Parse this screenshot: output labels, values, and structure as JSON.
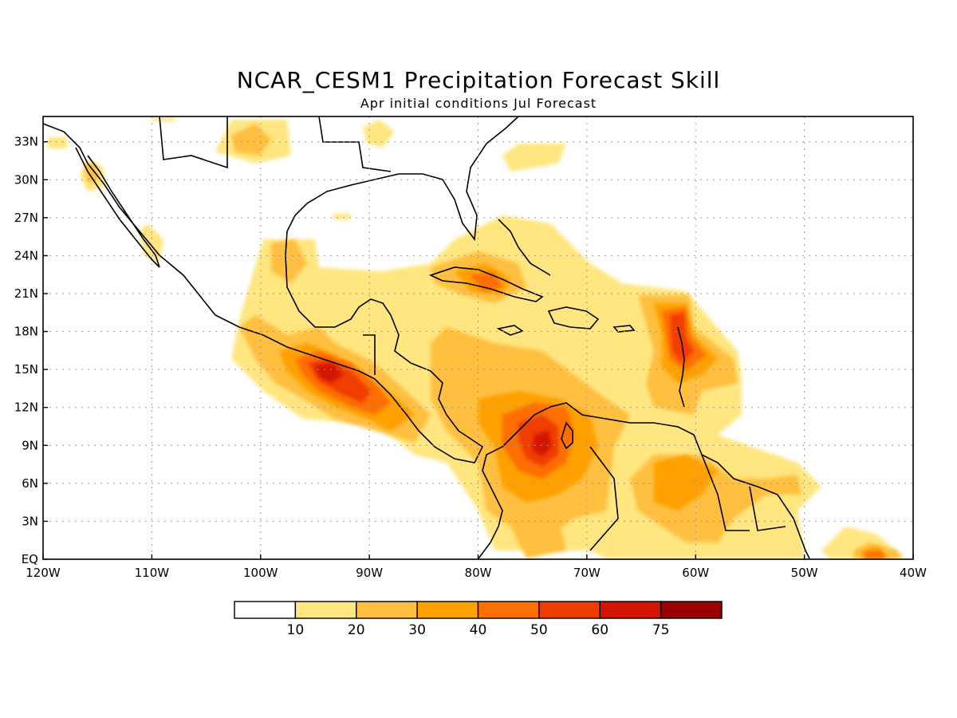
{
  "title": "NCAR_CESM1 Precipitation Forecast Skill",
  "subtitle": "Apr initial conditions  Jul Forecast",
  "map": {
    "lon_range": [
      -120,
      -40
    ],
    "lat_range": [
      0,
      35
    ],
    "x_ticks": [
      "120W",
      "110W",
      "100W",
      "90W",
      "80W",
      "70W",
      "60W",
      "50W",
      "40W"
    ],
    "y_ticks": [
      "EQ",
      "3N",
      "6N",
      "9N",
      "12N",
      "15N",
      "18N",
      "21N",
      "24N",
      "27N",
      "30N",
      "33N"
    ],
    "gridlines": "dotted",
    "coastlines": true
  },
  "colorbar": {
    "levels": [
      "10",
      "20",
      "30",
      "40",
      "50",
      "60",
      "75"
    ],
    "colors": [
      "#ffffff",
      "#ffe680",
      "#ffbf40",
      "#ffa000",
      "#ff6e00",
      "#f03c00",
      "#d21400",
      "#9b0000"
    ]
  },
  "skill_regions": [
    {
      "name": "Pacific coast southern Mexico / Guatemala",
      "lon": -93,
      "lat": 14.5,
      "level": "60"
    },
    {
      "name": "Colombia / Lake Maracaibo",
      "lon": -74,
      "lat": 9,
      "level": "60"
    },
    {
      "name": "Lesser Antilles east of 61W",
      "lon": -61,
      "lat": 17,
      "level": "60"
    },
    {
      "name": "Cuba north coast",
      "lon": -79,
      "lat": 21.5,
      "level": "40"
    },
    {
      "name": "Equatorial Atlantic near 43W",
      "lon": -43,
      "lat": 0.5,
      "level": "60"
    }
  ]
}
